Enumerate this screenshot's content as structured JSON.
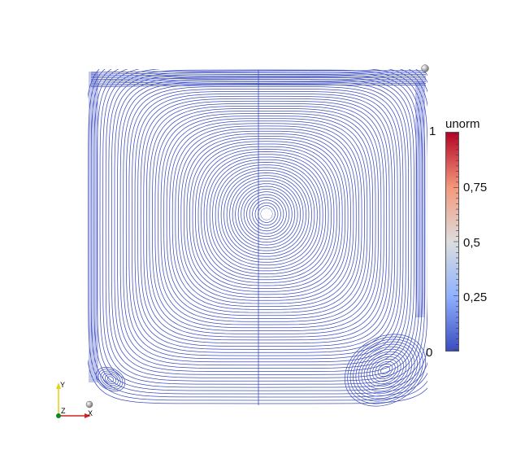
{
  "colorbar": {
    "title": "unorm",
    "labels": [
      "1",
      "0,75",
      "0,5",
      "0,25",
      "0"
    ],
    "colors": {
      "low": "#3b4cc0",
      "mid": "#dddddd",
      "high": "#b40426"
    }
  },
  "axes": {
    "x": "X",
    "y": "Y",
    "z": "Z"
  },
  "colors": {
    "streamline": "#3b4cc0"
  },
  "icons": [
    "sphere-widget-icon",
    "orientation-axes-icon"
  ]
}
